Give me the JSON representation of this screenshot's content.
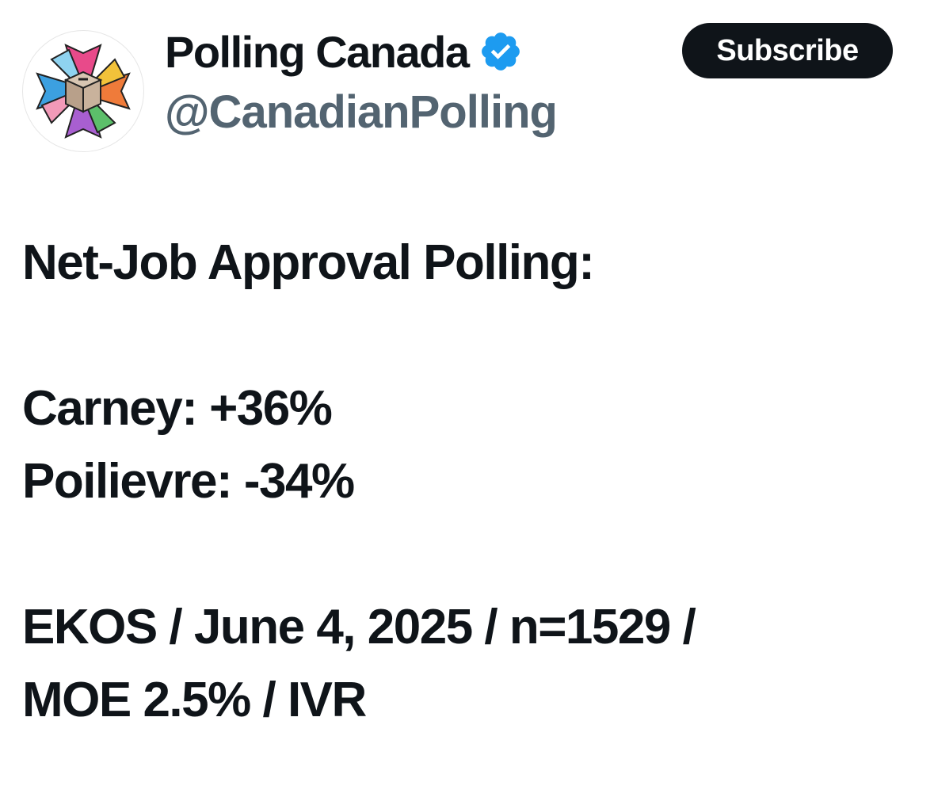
{
  "author": {
    "display_name": "Polling Canada",
    "handle": "@CanadianPolling",
    "verified_icon": "verified-badge-icon",
    "avatar_icon": "ballot-box-star-logo"
  },
  "actions": {
    "subscribe_label": "Subscribe"
  },
  "tweet": {
    "headline": "Net-Job Approval Polling:",
    "results": [
      "Carney: +36%",
      "Poilievre: -34%"
    ],
    "source_lines": [
      "EKOS / June 4, 2025 / n=1529 /",
      "MOE 2.5% / IVR"
    ]
  },
  "colors": {
    "text_primary": "#0f1419",
    "text_secondary": "#536471",
    "verified_blue": "#1d9bf0",
    "button_bg": "#0f1419",
    "button_text": "#ffffff"
  }
}
